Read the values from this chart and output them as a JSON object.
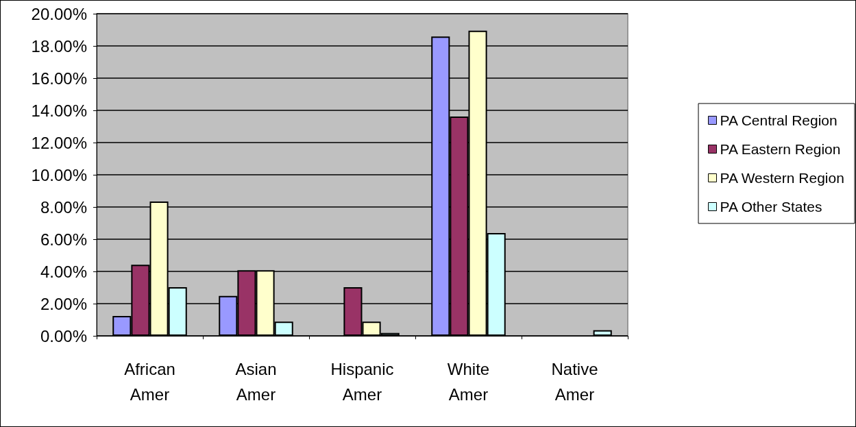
{
  "chart_data": {
    "type": "bar",
    "categories": [
      "African\nAmer",
      "Asian\nAmer",
      "Hispanic\nAmer",
      "White\nAmer",
      "Native\nAmer"
    ],
    "series": [
      {
        "name": "PA Central Region",
        "color": "#9999ff",
        "values": [
          1.23,
          2.48,
          null,
          18.58,
          null
        ]
      },
      {
        "name": "PA Eastern Region",
        "color": "#993366",
        "values": [
          4.41,
          4.07,
          3.02,
          13.62,
          null
        ]
      },
      {
        "name": "PA Western Region",
        "color": "#ffffcc",
        "values": [
          8.34,
          4.07,
          0.88,
          18.95,
          null
        ]
      },
      {
        "name": "PA Other States",
        "color": "#ccffff",
        "values": [
          3.02,
          0.88,
          0.18,
          6.38,
          0.35
        ]
      }
    ],
    "ylim": [
      0,
      20
    ],
    "yticks": [
      {
        "value": 0,
        "label": "0.00%"
      },
      {
        "value": 2,
        "label": "2.00%"
      },
      {
        "value": 4,
        "label": "4.00%"
      },
      {
        "value": 6,
        "label": "6.00%"
      },
      {
        "value": 8,
        "label": "8.00%"
      },
      {
        "value": 10,
        "label": "10.00%"
      },
      {
        "value": 12,
        "label": "12.00%"
      },
      {
        "value": 14,
        "label": "14.00%"
      },
      {
        "value": 16,
        "label": "16.00%"
      },
      {
        "value": 18,
        "label": "18.00%"
      },
      {
        "value": 20,
        "label": "20.00%"
      }
    ],
    "grid": "y",
    "legend": "right"
  }
}
